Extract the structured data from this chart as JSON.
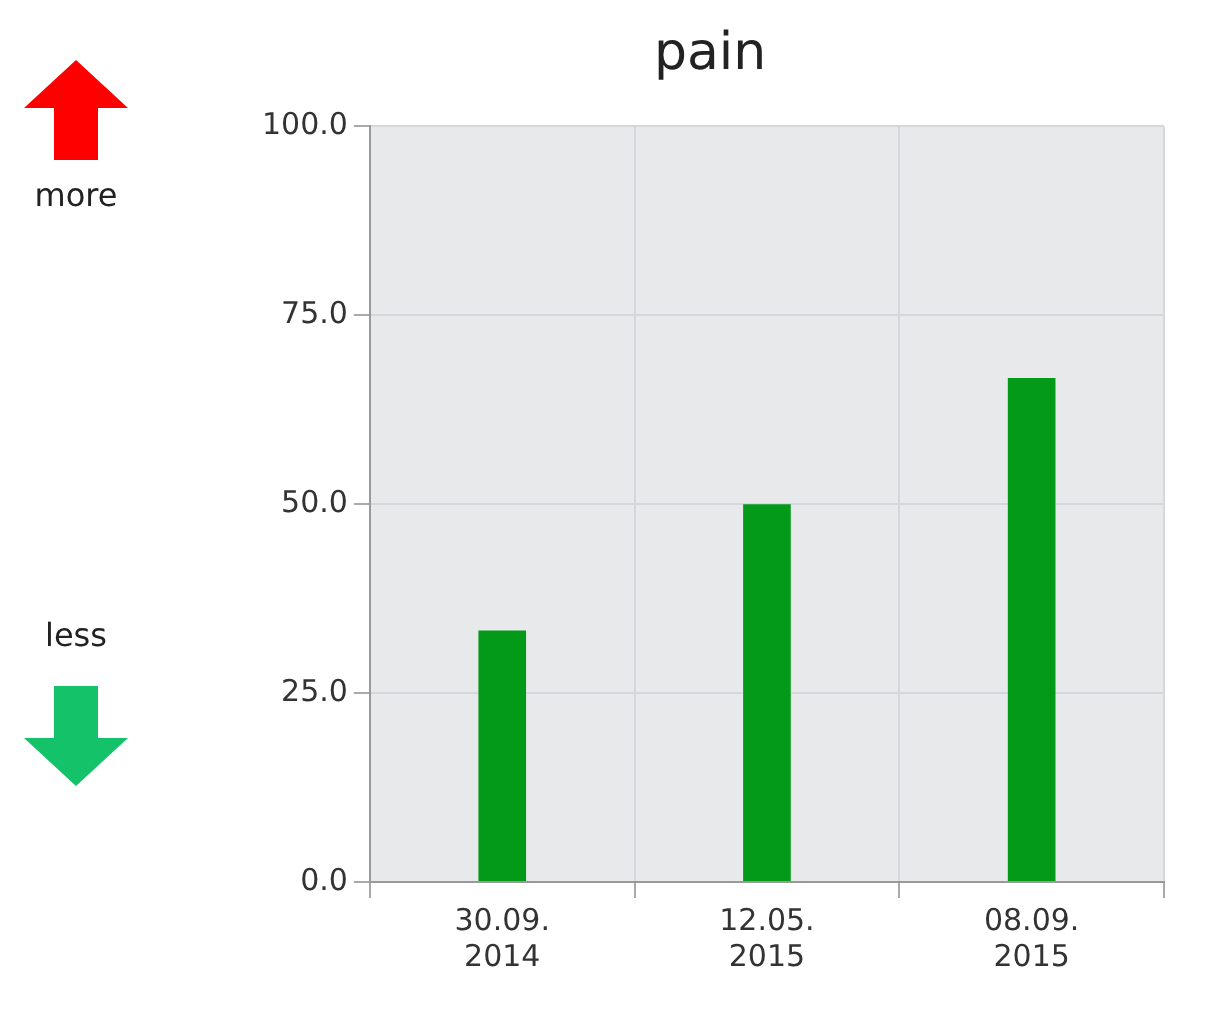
{
  "chart_data": {
    "type": "bar",
    "title": "pain",
    "categories": [
      "30.09. 2014",
      "12.05. 2015",
      "08.09. 2015"
    ],
    "values": [
      33.3,
      50,
      66.7
    ],
    "color": "#039a1a",
    "ylim": [
      0,
      100
    ],
    "yticks": [
      {
        "value": 0,
        "label": "0.0"
      },
      {
        "value": 25,
        "label": "25.0"
      },
      {
        "value": 50,
        "label": "50.0"
      },
      {
        "value": 75,
        "label": "75.0"
      },
      {
        "value": 100,
        "label": "100.0"
      }
    ],
    "grid": true,
    "legend": false,
    "annotations": [
      "more",
      "less"
    ]
  }
}
